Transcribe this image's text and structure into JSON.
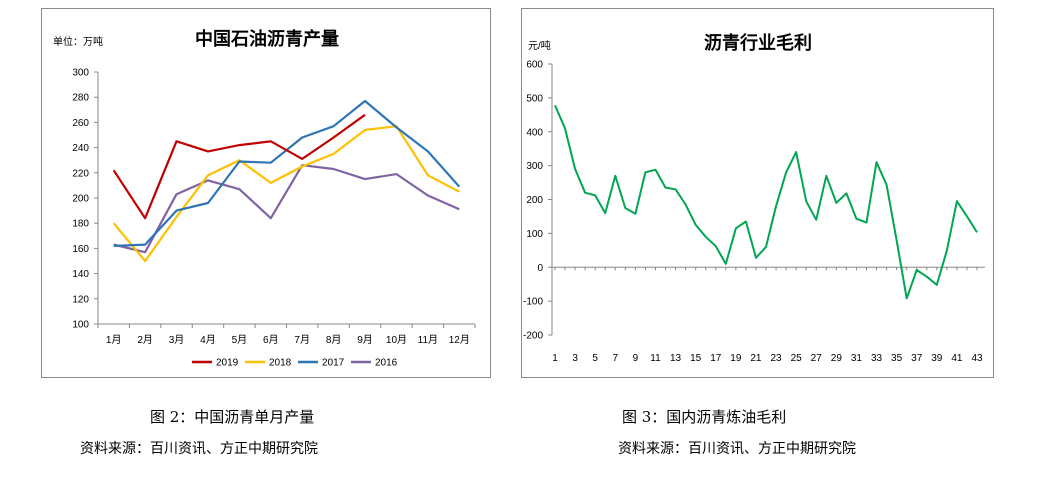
{
  "captions": {
    "fig2": "图 2：中国沥青单月产量",
    "fig3": "图 3：国内沥青炼油毛利",
    "source_left": "资料来源：百川资讯、方正中期研究院",
    "source_right": "资料来源：百川资讯、方正中期研究院"
  },
  "chart_data": [
    {
      "type": "line",
      "title": "中国石油沥青产量",
      "unit_label": "单位：万吨",
      "categories": [
        "1月",
        "2月",
        "3月",
        "4月",
        "5月",
        "6月",
        "7月",
        "8月",
        "9月",
        "10月",
        "11月",
        "12月"
      ],
      "ylim": [
        100,
        300
      ],
      "yticks": [
        100,
        120,
        140,
        160,
        180,
        200,
        220,
        240,
        260,
        280,
        300
      ],
      "grid": false,
      "legend": "bottom",
      "series": [
        {
          "name": "2019",
          "color": "#c00000",
          "values": [
            222,
            184,
            245,
            237,
            242,
            245,
            231,
            248,
            266,
            null,
            null,
            null
          ]
        },
        {
          "name": "2018",
          "color": "#ffc000",
          "values": [
            180,
            150,
            185,
            218,
            230,
            212,
            225,
            235,
            254,
            257,
            218,
            205
          ]
        },
        {
          "name": "2017",
          "color": "#2e75b6",
          "values": [
            162,
            163,
            190,
            196,
            229,
            228,
            248,
            257,
            277,
            256,
            237,
            209
          ]
        },
        {
          "name": "2016",
          "color": "#8064a2",
          "values": [
            163,
            157,
            203,
            214,
            207,
            184,
            226,
            223,
            215,
            219,
            202,
            191
          ]
        }
      ]
    },
    {
      "type": "line",
      "title": "沥青行业毛利",
      "unit_label": "元/吨",
      "x": [
        1,
        2,
        3,
        4,
        5,
        6,
        7,
        8,
        9,
        10,
        11,
        12,
        13,
        14,
        15,
        16,
        17,
        18,
        19,
        20,
        21,
        22,
        23,
        24,
        25,
        26,
        27,
        28,
        29,
        30,
        31,
        32,
        33,
        34,
        35,
        36,
        37,
        38,
        39,
        40,
        41,
        42,
        43
      ],
      "xticks": [
        1,
        3,
        5,
        7,
        9,
        11,
        13,
        15,
        17,
        19,
        21,
        23,
        25,
        27,
        29,
        31,
        33,
        35,
        37,
        39,
        41,
        43
      ],
      "ylim": [
        -200,
        600
      ],
      "yticks": [
        -200,
        -100,
        0,
        100,
        200,
        300,
        400,
        500,
        600
      ],
      "grid": false,
      "color": "#00a651",
      "series": [
        {
          "values": [
            478,
            410,
            290,
            220,
            212,
            160,
            270,
            175,
            158,
            280,
            288,
            235,
            230,
            185,
            125,
            90,
            62,
            10,
            115,
            135,
            28,
            60,
            180,
            280,
            340,
            195,
            140,
            270,
            190,
            218,
            143,
            132,
            310,
            243,
            80,
            -92,
            -8,
            -28,
            -52,
            50,
            195,
            150,
            103
          ]
        }
      ]
    }
  ]
}
